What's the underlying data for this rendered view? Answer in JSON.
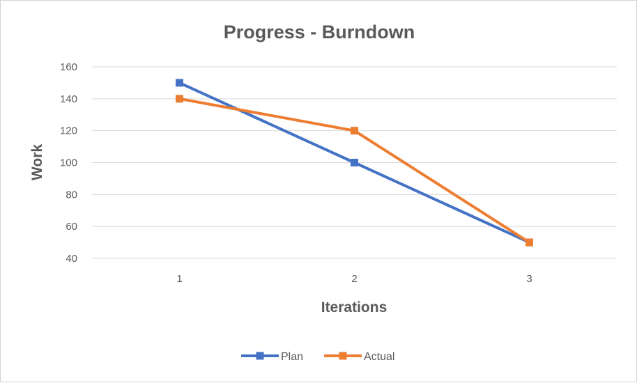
{
  "chart_data": {
    "type": "line",
    "title": "Progress - Burndown",
    "xlabel": "Iterations",
    "ylabel": "Work",
    "categories": [
      "1",
      "2",
      "3"
    ],
    "ylim": [
      40,
      160
    ],
    "yticks": [
      40,
      60,
      80,
      100,
      120,
      140,
      160
    ],
    "grid": true,
    "legend_position": "bottom",
    "series": [
      {
        "name": "Plan",
        "values": [
          150,
          100,
          50
        ],
        "color": "#4472C4",
        "marker": "square"
      },
      {
        "name": "Actual",
        "values": [
          140,
          120,
          50
        ],
        "color": "#ED7D31",
        "marker": "square"
      }
    ]
  }
}
